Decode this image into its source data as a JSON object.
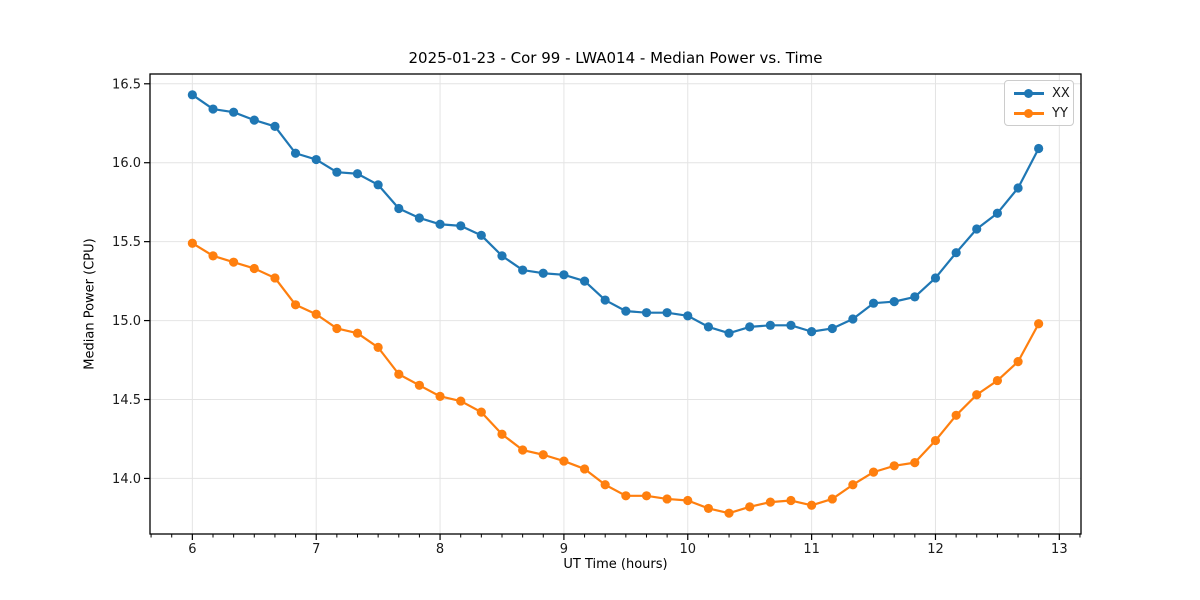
{
  "chart_data": {
    "type": "line",
    "title": "2025-01-23 - Cor 99 - LWA014 - Median Power vs. Time",
    "xlabel": "UT Time (hours)",
    "ylabel": "Median Power (CPU)",
    "xlim": [
      5.658,
      13.175
    ],
    "ylim": [
      13.648,
      16.562
    ],
    "x_ticks": [
      6,
      7,
      8,
      9,
      10,
      11,
      12,
      13
    ],
    "y_ticks": [
      14.0,
      14.5,
      15.0,
      15.5,
      16.0,
      16.5
    ],
    "minor_tick_interval_hours": 0.1667,
    "grid": true,
    "legend_position": "upper right",
    "x": [
      6.0,
      6.167,
      6.333,
      6.5,
      6.667,
      6.833,
      7.0,
      7.167,
      7.333,
      7.5,
      7.667,
      7.833,
      8.0,
      8.167,
      8.333,
      8.5,
      8.667,
      8.833,
      9.0,
      9.167,
      9.333,
      9.5,
      9.667,
      9.833,
      10.0,
      10.167,
      10.333,
      10.5,
      10.667,
      10.833,
      11.0,
      11.167,
      11.333,
      11.5,
      11.667,
      11.833,
      12.0,
      12.167,
      12.333,
      12.5,
      12.667,
      12.833
    ],
    "series": [
      {
        "name": "XX",
        "color": "#1f77b4",
        "marker": "circle",
        "values": [
          16.43,
          16.34,
          16.32,
          16.27,
          16.23,
          16.06,
          16.02,
          15.94,
          15.93,
          15.86,
          15.71,
          15.65,
          15.61,
          15.6,
          15.54,
          15.41,
          15.32,
          15.3,
          15.29,
          15.25,
          15.13,
          15.06,
          15.05,
          15.05,
          15.03,
          14.96,
          14.92,
          14.96,
          14.97,
          14.97,
          14.93,
          14.95,
          15.01,
          15.11,
          15.12,
          15.15,
          15.27,
          15.43,
          15.58,
          15.68,
          15.84,
          16.09
        ]
      },
      {
        "name": "YY",
        "color": "#ff7f0e",
        "marker": "circle",
        "values": [
          15.49,
          15.41,
          15.37,
          15.33,
          15.27,
          15.1,
          15.04,
          14.95,
          14.92,
          14.83,
          14.66,
          14.59,
          14.52,
          14.49,
          14.42,
          14.28,
          14.18,
          14.15,
          14.11,
          14.06,
          13.96,
          13.89,
          13.89,
          13.87,
          13.86,
          13.81,
          13.78,
          13.82,
          13.85,
          13.86,
          13.83,
          13.87,
          13.96,
          14.04,
          14.08,
          14.1,
          14.24,
          14.4,
          14.53,
          14.62,
          14.74,
          14.98
        ]
      }
    ]
  }
}
